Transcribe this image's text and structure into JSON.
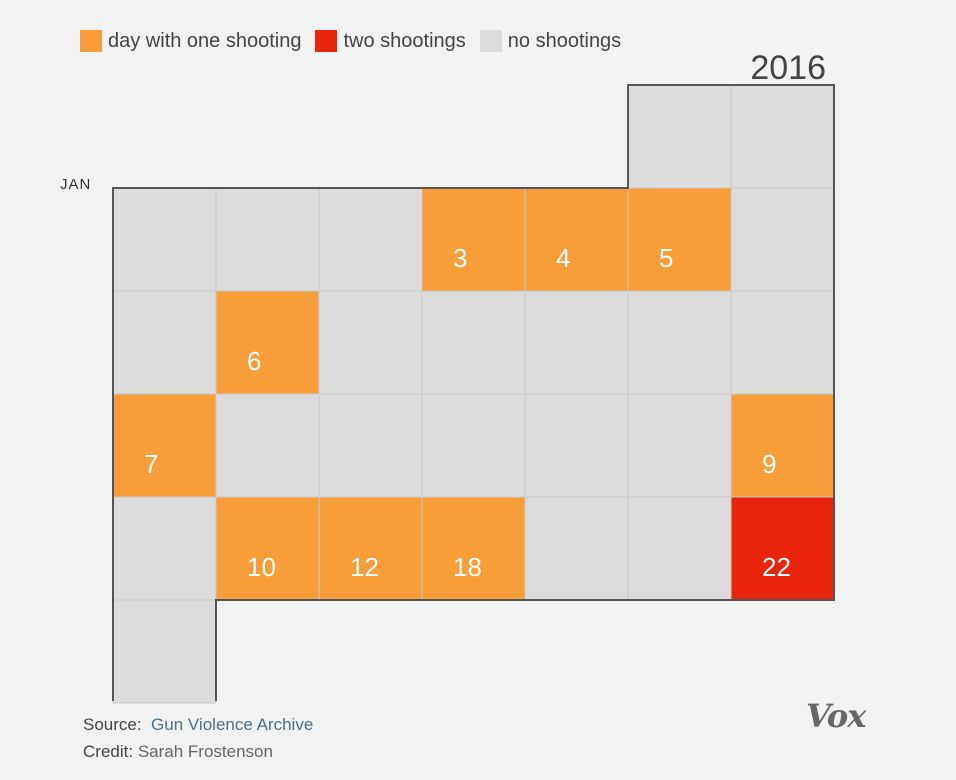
{
  "legend": [
    {
      "label": "day with one shooting",
      "color": "#f79e3b"
    },
    {
      "label": "two shootings",
      "color": "#e9240d"
    },
    {
      "label": "no shootings",
      "color": "#dcdcdc"
    }
  ],
  "chart_data": {
    "type": "heatmap",
    "title": "2016",
    "month_label": "JAN",
    "columns": 7,
    "calendar": [
      {
        "row": 0,
        "col": 5,
        "label": "",
        "shootings": 0
      },
      {
        "row": 0,
        "col": 6,
        "label": "",
        "shootings": 0
      },
      {
        "row": 1,
        "col": 0,
        "label": "",
        "shootings": 0
      },
      {
        "row": 1,
        "col": 1,
        "label": "",
        "shootings": 0
      },
      {
        "row": 1,
        "col": 2,
        "label": "",
        "shootings": 0
      },
      {
        "row": 1,
        "col": 3,
        "label": "3",
        "shootings": 1
      },
      {
        "row": 1,
        "col": 4,
        "label": "4",
        "shootings": 1
      },
      {
        "row": 1,
        "col": 5,
        "label": "5",
        "shootings": 1
      },
      {
        "row": 1,
        "col": 6,
        "label": "",
        "shootings": 0
      },
      {
        "row": 2,
        "col": 0,
        "label": "",
        "shootings": 0
      },
      {
        "row": 2,
        "col": 1,
        "label": "6",
        "shootings": 1
      },
      {
        "row": 2,
        "col": 2,
        "label": "",
        "shootings": 0
      },
      {
        "row": 2,
        "col": 3,
        "label": "",
        "shootings": 0
      },
      {
        "row": 2,
        "col": 4,
        "label": "",
        "shootings": 0
      },
      {
        "row": 2,
        "col": 5,
        "label": "",
        "shootings": 0
      },
      {
        "row": 2,
        "col": 6,
        "label": "",
        "shootings": 0
      },
      {
        "row": 3,
        "col": 0,
        "label": "7",
        "shootings": 1
      },
      {
        "row": 3,
        "col": 1,
        "label": "",
        "shootings": 0
      },
      {
        "row": 3,
        "col": 2,
        "label": "",
        "shootings": 0
      },
      {
        "row": 3,
        "col": 3,
        "label": "",
        "shootings": 0
      },
      {
        "row": 3,
        "col": 4,
        "label": "",
        "shootings": 0
      },
      {
        "row": 3,
        "col": 5,
        "label": "",
        "shootings": 0
      },
      {
        "row": 3,
        "col": 6,
        "label": "9",
        "shootings": 1
      },
      {
        "row": 4,
        "col": 0,
        "label": "",
        "shootings": 0
      },
      {
        "row": 4,
        "col": 1,
        "label": "10",
        "shootings": 1
      },
      {
        "row": 4,
        "col": 2,
        "label": "12",
        "shootings": 1
      },
      {
        "row": 4,
        "col": 3,
        "label": "18",
        "shootings": 1
      },
      {
        "row": 4,
        "col": 4,
        "label": "",
        "shootings": 0
      },
      {
        "row": 4,
        "col": 5,
        "label": "",
        "shootings": 0
      },
      {
        "row": 4,
        "col": 6,
        "label": "22",
        "shootings": 2
      },
      {
        "row": 5,
        "col": 0,
        "label": "",
        "shootings": 0
      }
    ]
  },
  "footer": {
    "source_label": "Source:",
    "source_value": "Gun Violence Archive",
    "credit_label": "Credit:",
    "credit_value": "Sarah Frostenson"
  },
  "brand": {
    "logo_text": "Vox"
  }
}
